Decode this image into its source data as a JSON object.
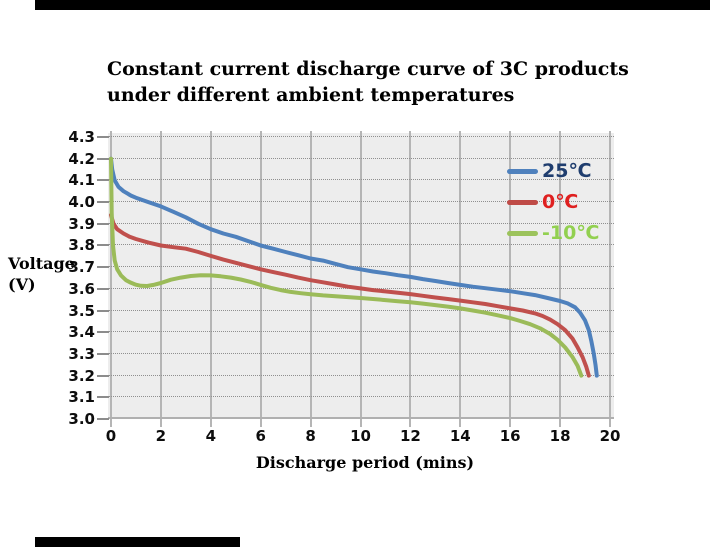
{
  "chart": {
    "title": "Constant current discharge curve of 3C products\nunder different ambient temperatures",
    "xlabel": "Discharge period (mins)",
    "ylabel": "Voltage\n(V)",
    "x_tick_labels": [
      "0",
      "2",
      "4",
      "6",
      "8",
      "10",
      "12",
      "14",
      "16",
      "18",
      "20"
    ],
    "y_tick_labels": [
      "4.3",
      "4.2",
      "4.1",
      "4.0",
      "3.9",
      "3.8",
      "3.7",
      "3.6",
      "3.5",
      "3.4",
      "3.3",
      "3.2",
      "3.1",
      "3.0"
    ]
  },
  "legend": {
    "items": [
      {
        "label": "25℃",
        "text_color": "#1f3d6e",
        "line_color": "#4f81bd"
      },
      {
        "label": "0℃",
        "text_color": "#df2020",
        "line_color": "#bf4b47"
      },
      {
        "label": "-10℃",
        "text_color": "#92d050",
        "line_color": "#9cc35c"
      }
    ]
  },
  "colors": {
    "plot_background": "#ededed",
    "major_gridline": "#b5b5b5",
    "minor_gridline_dotted": "#8f8f8f",
    "series_blue": "#4f81bd",
    "series_red": "#c0504d",
    "series_green": "#9bbb59"
  },
  "chart_data": {
    "type": "line",
    "title": "Constant current discharge curve of 3C products under different ambient temperatures",
    "xlabel": "Discharge period (mins)",
    "ylabel": "Voltage (V)",
    "xlim": [
      0,
      20
    ],
    "ylim": [
      3.0,
      4.3
    ],
    "x_ticks": [
      0,
      2,
      4,
      6,
      8,
      10,
      12,
      14,
      16,
      18,
      20
    ],
    "y_ticks": [
      3.0,
      3.1,
      3.2,
      3.3,
      3.4,
      3.5,
      3.6,
      3.7,
      3.8,
      3.9,
      4.0,
      4.1,
      4.2,
      4.3
    ],
    "grid": true,
    "legend_position": "upper-right-inside",
    "series": [
      {
        "name": "25℃",
        "color": "#4f81bd",
        "points": [
          [
            0,
            4.2
          ],
          [
            0.05,
            4.15
          ],
          [
            0.15,
            4.1
          ],
          [
            0.3,
            4.07
          ],
          [
            0.5,
            4.05
          ],
          [
            0.8,
            4.03
          ],
          [
            1,
            4.02
          ],
          [
            1.5,
            4.0
          ],
          [
            2,
            3.98
          ],
          [
            2.5,
            3.955
          ],
          [
            3,
            3.93
          ],
          [
            3.5,
            3.9
          ],
          [
            4,
            3.875
          ],
          [
            4.5,
            3.855
          ],
          [
            5,
            3.84
          ],
          [
            5.5,
            3.82
          ],
          [
            6,
            3.8
          ],
          [
            6.5,
            3.785
          ],
          [
            7,
            3.77
          ],
          [
            7.5,
            3.755
          ],
          [
            8,
            3.74
          ],
          [
            8.5,
            3.73
          ],
          [
            9,
            3.715
          ],
          [
            9.5,
            3.7
          ],
          [
            10,
            3.69
          ],
          [
            10.5,
            3.68
          ],
          [
            11,
            3.672
          ],
          [
            11.5,
            3.663
          ],
          [
            12,
            3.655
          ],
          [
            12.5,
            3.645
          ],
          [
            13,
            3.636
          ],
          [
            13.5,
            3.627
          ],
          [
            14,
            3.618
          ],
          [
            14.5,
            3.61
          ],
          [
            15,
            3.603
          ],
          [
            15.5,
            3.596
          ],
          [
            16,
            3.589
          ],
          [
            16.5,
            3.58
          ],
          [
            17,
            3.571
          ],
          [
            17.5,
            3.558
          ],
          [
            18,
            3.544
          ],
          [
            18.3,
            3.533
          ],
          [
            18.6,
            3.515
          ],
          [
            18.8,
            3.49
          ],
          [
            19,
            3.455
          ],
          [
            19.15,
            3.41
          ],
          [
            19.25,
            3.36
          ],
          [
            19.35,
            3.3
          ],
          [
            19.42,
            3.25
          ],
          [
            19.47,
            3.2
          ]
        ]
      },
      {
        "name": "0℃",
        "color": "#c0504d",
        "points": [
          [
            0,
            3.94
          ],
          [
            0.1,
            3.9
          ],
          [
            0.25,
            3.875
          ],
          [
            0.5,
            3.855
          ],
          [
            0.75,
            3.84
          ],
          [
            1,
            3.83
          ],
          [
            1.5,
            3.813
          ],
          [
            2,
            3.8
          ],
          [
            2.5,
            3.792
          ],
          [
            3,
            3.785
          ],
          [
            3.5,
            3.77
          ],
          [
            4,
            3.752
          ],
          [
            4.5,
            3.735
          ],
          [
            5,
            3.72
          ],
          [
            5.5,
            3.705
          ],
          [
            6,
            3.69
          ],
          [
            6.5,
            3.677
          ],
          [
            7,
            3.665
          ],
          [
            7.5,
            3.652
          ],
          [
            8,
            3.64
          ],
          [
            8.5,
            3.63
          ],
          [
            9,
            3.62
          ],
          [
            9.5,
            3.61
          ],
          [
            10,
            3.602
          ],
          [
            10.5,
            3.594
          ],
          [
            11,
            3.588
          ],
          [
            11.5,
            3.582
          ],
          [
            12,
            3.576
          ],
          [
            12.5,
            3.568
          ],
          [
            13,
            3.56
          ],
          [
            13.5,
            3.553
          ],
          [
            14,
            3.546
          ],
          [
            14.5,
            3.538
          ],
          [
            15,
            3.53
          ],
          [
            15.5,
            3.52
          ],
          [
            16,
            3.51
          ],
          [
            16.5,
            3.5
          ],
          [
            17,
            3.487
          ],
          [
            17.3,
            3.475
          ],
          [
            17.6,
            3.458
          ],
          [
            17.9,
            3.437
          ],
          [
            18.2,
            3.41
          ],
          [
            18.5,
            3.37
          ],
          [
            18.7,
            3.33
          ],
          [
            18.9,
            3.285
          ],
          [
            19.05,
            3.24
          ],
          [
            19.15,
            3.2
          ]
        ]
      },
      {
        "name": "-10℃",
        "color": "#9bbb59",
        "points": [
          [
            0,
            4.2
          ],
          [
            0.03,
            3.95
          ],
          [
            0.08,
            3.8
          ],
          [
            0.15,
            3.73
          ],
          [
            0.25,
            3.69
          ],
          [
            0.4,
            3.662
          ],
          [
            0.6,
            3.64
          ],
          [
            0.8,
            3.628
          ],
          [
            1.0,
            3.619
          ],
          [
            1.2,
            3.614
          ],
          [
            1.45,
            3.613
          ],
          [
            1.7,
            3.618
          ],
          [
            2,
            3.627
          ],
          [
            2.4,
            3.642
          ],
          [
            2.8,
            3.652
          ],
          [
            3.2,
            3.659
          ],
          [
            3.6,
            3.663
          ],
          [
            4,
            3.662
          ],
          [
            4.4,
            3.658
          ],
          [
            4.8,
            3.652
          ],
          [
            5.2,
            3.643
          ],
          [
            5.6,
            3.632
          ],
          [
            6,
            3.618
          ],
          [
            6.4,
            3.605
          ],
          [
            6.8,
            3.594
          ],
          [
            7.2,
            3.586
          ],
          [
            7.6,
            3.58
          ],
          [
            8,
            3.575
          ],
          [
            8.5,
            3.57
          ],
          [
            9,
            3.566
          ],
          [
            9.5,
            3.562
          ],
          [
            10,
            3.558
          ],
          [
            10.5,
            3.553
          ],
          [
            11,
            3.548
          ],
          [
            11.5,
            3.543
          ],
          [
            12,
            3.538
          ],
          [
            12.5,
            3.532
          ],
          [
            13,
            3.525
          ],
          [
            13.5,
            3.518
          ],
          [
            14,
            3.51
          ],
          [
            14.5,
            3.5
          ],
          [
            15,
            3.49
          ],
          [
            15.5,
            3.478
          ],
          [
            16,
            3.465
          ],
          [
            16.4,
            3.452
          ],
          [
            16.8,
            3.437
          ],
          [
            17.2,
            3.418
          ],
          [
            17.6,
            3.392
          ],
          [
            17.9,
            3.365
          ],
          [
            18.2,
            3.33
          ],
          [
            18.5,
            3.285
          ],
          [
            18.7,
            3.245
          ],
          [
            18.85,
            3.2
          ]
        ]
      }
    ]
  }
}
